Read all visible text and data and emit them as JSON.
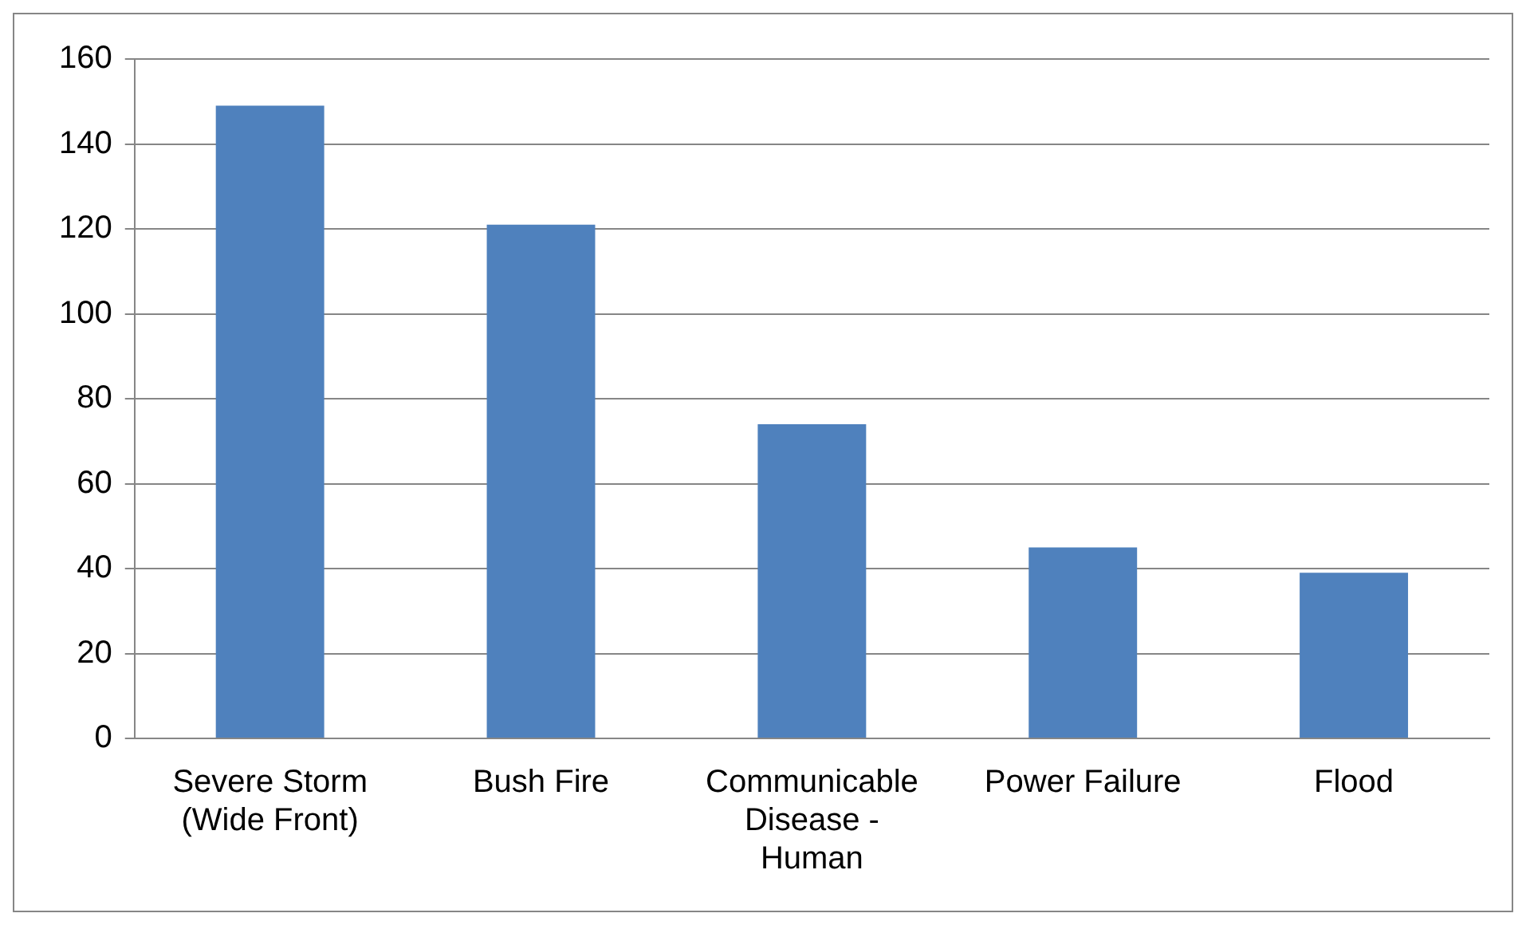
{
  "chart_data": {
    "type": "bar",
    "categories": [
      "Severe Storm (Wide Front)",
      "Bush Fire",
      "Communicable Disease - Human",
      "Power Failure",
      "Flood"
    ],
    "values": [
      149,
      121,
      74,
      45,
      39
    ],
    "color": "#4f81bd",
    "ylim": [
      0,
      160
    ],
    "yticks": [
      0,
      20,
      40,
      60,
      80,
      100,
      120,
      140,
      160
    ],
    "grid": "y",
    "legend": false
  }
}
